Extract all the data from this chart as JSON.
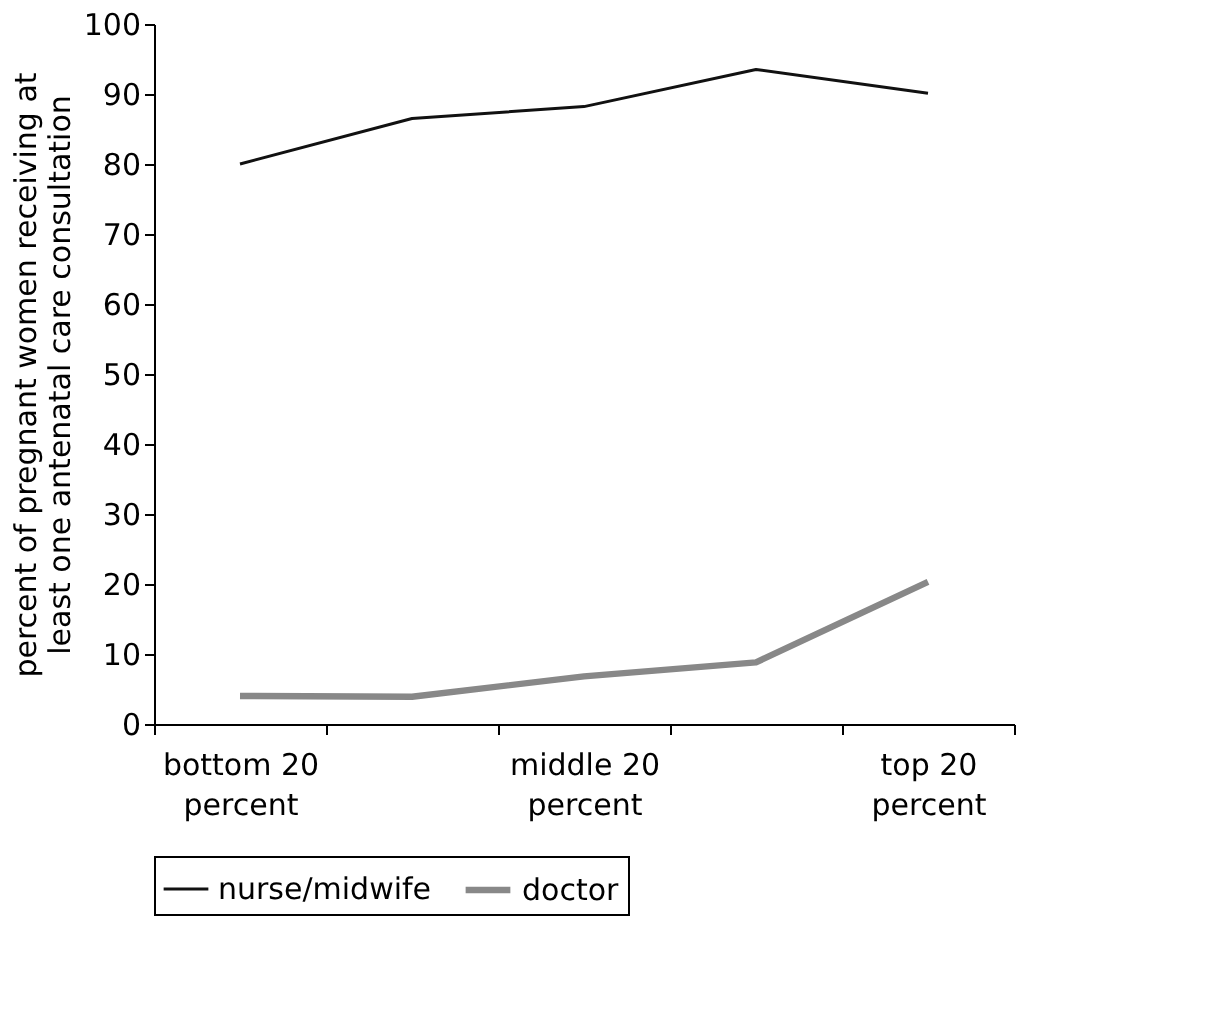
{
  "chart_data": {
    "type": "line",
    "ylabel": "percent of pregnant women receiving at least one antenatal care consultation",
    "categories": [
      "bottom 20 percent",
      null,
      "middle 20 percent",
      null,
      "top 20 percent"
    ],
    "series": [
      {
        "name": "nurse/midwife",
        "color": "#111111",
        "values": [
          80,
          86.5,
          88.2,
          93.5,
          90.1
        ]
      },
      {
        "name": "doctor",
        "color": "#888888",
        "values": [
          4,
          3.9,
          6.8,
          8.8,
          20.3
        ]
      }
    ],
    "ylim": [
      0,
      100
    ],
    "yticks": [
      0,
      10,
      20,
      30,
      40,
      50,
      60,
      70,
      80,
      90,
      100
    ],
    "grid": false,
    "legend": "bottom",
    "marker": "none",
    "line_style": "solid"
  }
}
